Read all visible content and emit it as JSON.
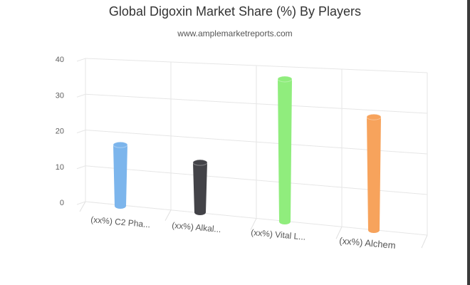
{
  "title": "Global Digoxin Market Share (%) By Players",
  "subtitle": "www.amplemarketreports.com",
  "chart_data": {
    "type": "bar",
    "title": "Global Digoxin Market Share (%) By Players",
    "subtitle": "www.amplemarketreports.com",
    "xlabel": "",
    "ylabel": "",
    "ylim": [
      0,
      40
    ],
    "yticks": [
      0,
      10,
      20,
      30,
      40
    ],
    "grid": true,
    "legend": "none",
    "categories": [
      "(xx%) C2 Pha...",
      "(xx%) Alkal...",
      "(xx%) Vital L...",
      "(xx%) Alchem"
    ],
    "values": [
      13.5,
      11,
      31.5,
      25
    ],
    "colors": [
      "#7cb5ec",
      "#434348",
      "#90ed7d",
      "#f7a35c"
    ]
  }
}
